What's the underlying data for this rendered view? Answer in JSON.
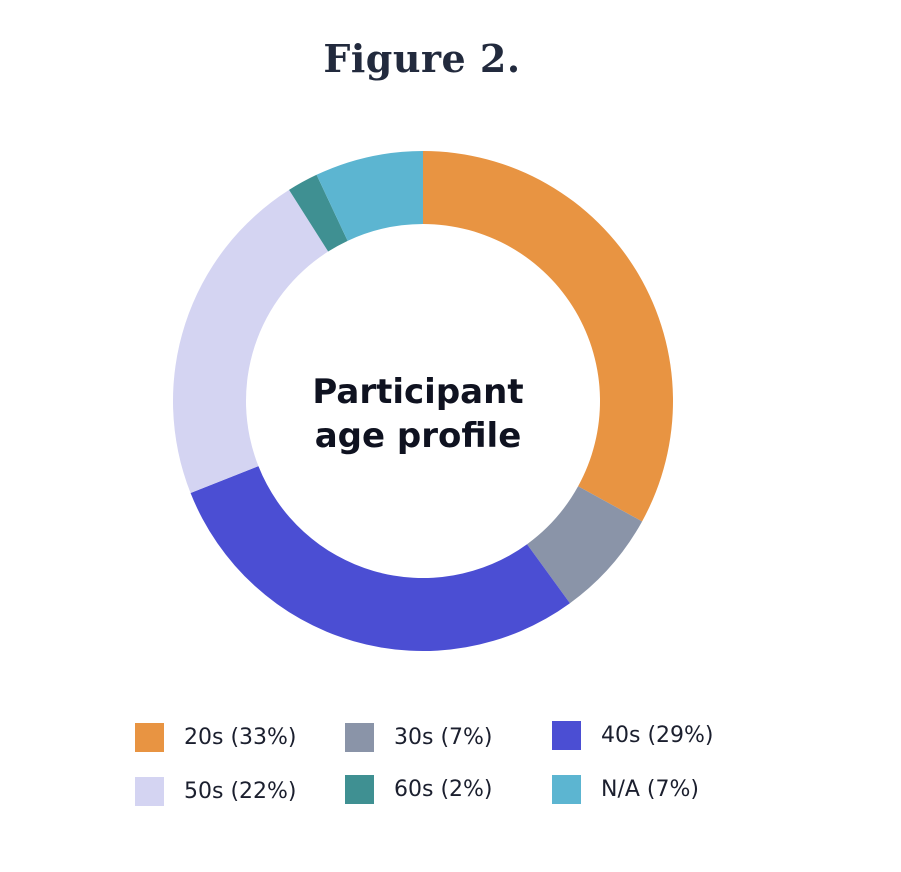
{
  "chart_data": {
    "type": "pie",
    "variant": "donut",
    "title": "Figure 2.",
    "center_label_lines": [
      "Participant",
      "age profile"
    ],
    "categories": [
      "20s (33%)",
      "30s (7%)",
      "40s (29%)",
      "50s (22%)",
      "60s (2%)",
      "N/A (7%)"
    ],
    "values": [
      33,
      7,
      29,
      22,
      2,
      7
    ],
    "colors": [
      "#e89442",
      "#8a94a8",
      "#4b4ed3",
      "#d4d4f2",
      "#3f9092",
      "#5cb5d1"
    ],
    "legend_placement": "bottom"
  }
}
